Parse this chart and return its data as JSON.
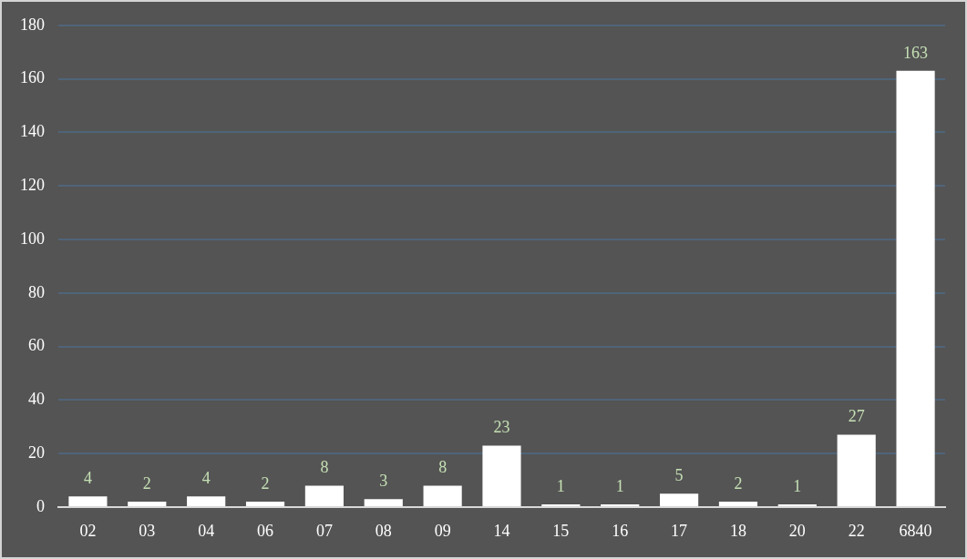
{
  "chart_data": {
    "type": "bar",
    "categories": [
      "02",
      "03",
      "04",
      "06",
      "07",
      "08",
      "09",
      "14",
      "15",
      "16",
      "17",
      "18",
      "20",
      "22",
      "6840"
    ],
    "values": [
      4,
      2,
      4,
      2,
      8,
      3,
      8,
      23,
      1,
      1,
      5,
      2,
      1,
      27,
      163
    ],
    "color": "#ffffff",
    "ylim": [
      0,
      180
    ],
    "yticks": [
      0,
      20,
      40,
      60,
      80,
      100,
      120,
      140,
      160,
      180
    ],
    "grid": "y",
    "data_labels": true
  }
}
